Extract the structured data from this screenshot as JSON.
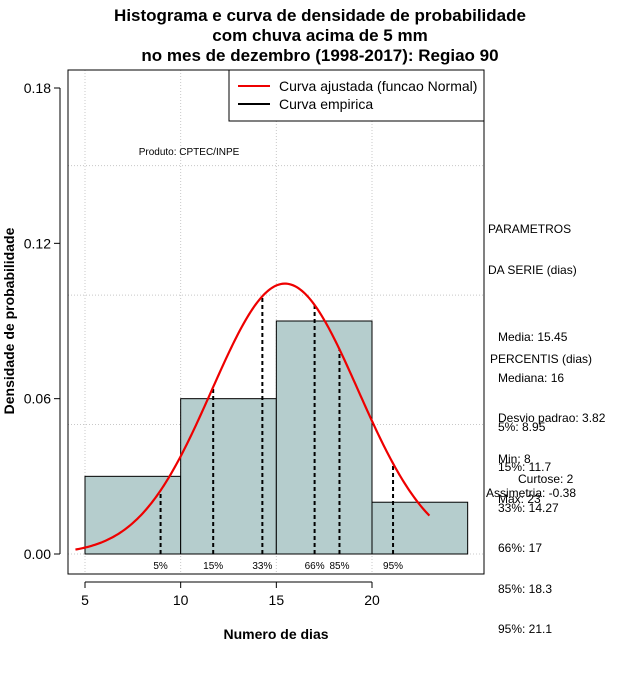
{
  "chart_data": {
    "type": "histogram",
    "title_lines": [
      "Histograma e curva de densidade de probabilidade",
      "com chuva acima de 5 mm",
      "no mes de dezembro (1998-2017): Regiao 90"
    ],
    "xlabel": "Numero de dias",
    "ylabel": "Densidade de probabilidade",
    "xlim": [
      4.5,
      25.5
    ],
    "ylim": [
      0,
      0.18
    ],
    "x_ticks": [
      5,
      10,
      15,
      20
    ],
    "y_ticks": [
      0.0,
      0.06,
      0.12,
      0.18
    ],
    "y_tick_labels": [
      "0.00",
      "0.06",
      "0.12",
      "0.18"
    ],
    "grid": true,
    "legend_position": "top-right",
    "legend": [
      {
        "label": "Curva ajustada (funcao Normal)",
        "color": "#ee0000"
      },
      {
        "label": "Curva empirica",
        "color": "#000000"
      }
    ],
    "bins": [
      {
        "x0": 5,
        "x1": 10,
        "density": 0.03
      },
      {
        "x0": 10,
        "x1": 15,
        "density": 0.06
      },
      {
        "x0": 15,
        "x1": 20,
        "density": 0.09
      },
      {
        "x0": 20,
        "x1": 25,
        "density": 0.02
      }
    ],
    "bar_color": "#b5cdcd",
    "normal_fit": {
      "mean": 15.45,
      "sd": 3.82,
      "x_range": [
        4.5,
        23.0
      ],
      "color": "#ee0000"
    },
    "percentiles": [
      {
        "label": "5%",
        "value": 8.95
      },
      {
        "label": "15%",
        "value": 11.7
      },
      {
        "label": "33%",
        "value": 14.27
      },
      {
        "label": "66%",
        "value": 17
      },
      {
        "label": "85%",
        "value": 18.3
      },
      {
        "label": "95%",
        "value": 21.1
      }
    ],
    "annotation": "Produto: CPTEC/INPE"
  },
  "stats": {
    "header_lines": [
      "PARAMETROS",
      "DA SERIE (dias)"
    ],
    "lines": [
      "Media: 15.45",
      "Mediana: 16",
      "Desvio padrao: 3.82",
      "Min: 8",
      "Max: 23"
    ]
  },
  "percentis": {
    "header": "PERCENTIS (dias)",
    "lines": [
      "5%: 8.95",
      "15%: 11.7",
      "33%: 14.27",
      "66%: 17",
      "85%: 18.3",
      "95%: 21.1"
    ]
  },
  "shape": {
    "curtose": "Curtose: 2",
    "assimetria": "Assimetria: -0.38"
  }
}
